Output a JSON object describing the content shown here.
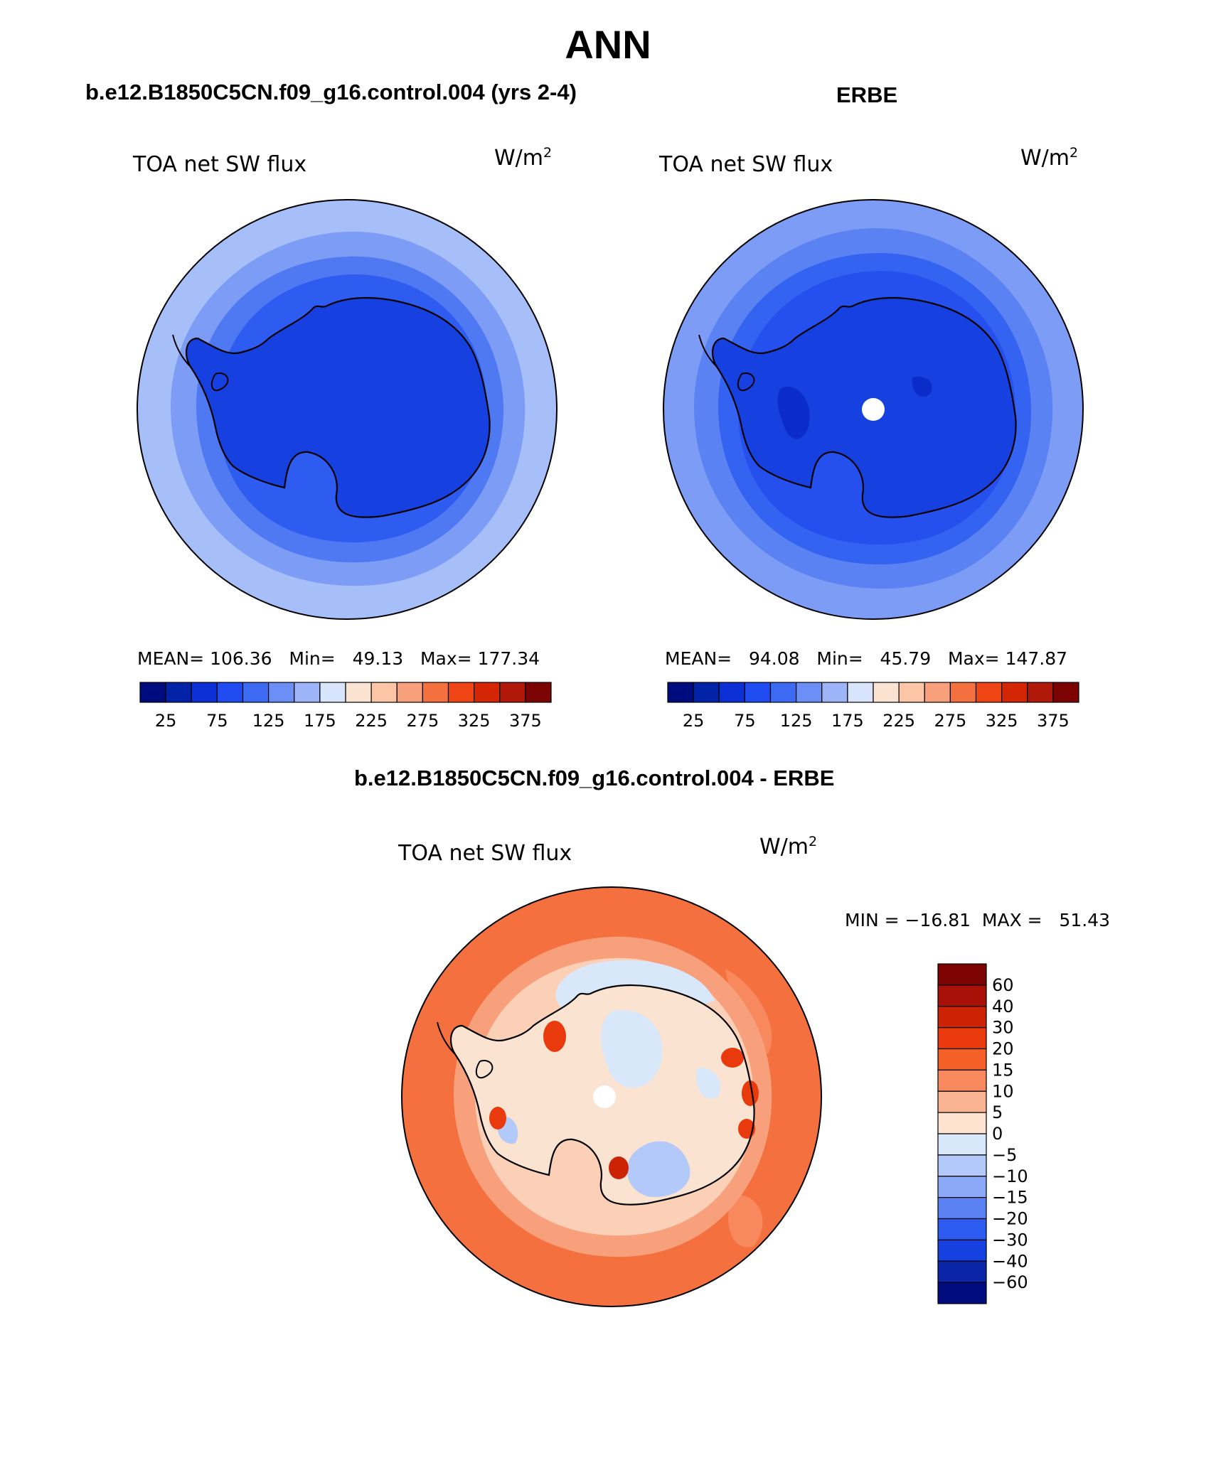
{
  "figure": {
    "season": "ANN"
  },
  "panels": [
    {
      "id": "model",
      "header": "b.e12.B1850C5CN.f09_g16.control.004 (yrs 2-4)",
      "variable": "TOA net SW flux",
      "units": "W/m",
      "units_exp": "2",
      "stats": {
        "mean_label": "MEAN=",
        "mean": "106.36",
        "min_label": "Min=",
        "min": "49.13",
        "max_label": "Max=",
        "max": "177.34"
      }
    },
    {
      "id": "obs",
      "header": "ERBE",
      "variable": "TOA net SW flux",
      "units": "W/m",
      "units_exp": "2",
      "stats": {
        "mean_label": "MEAN=",
        "mean": "94.08",
        "min_label": "Min=",
        "min": "45.79",
        "max_label": "Max=",
        "max": "147.87"
      }
    },
    {
      "id": "diff",
      "header": "b.e12.B1850C5CN.f09_g16.control.004 - ERBE",
      "variable": "TOA net SW flux",
      "units": "W/m",
      "units_exp": "2",
      "minmax_text": "MIN = −16.81  MAX =   51.43"
    }
  ],
  "chart_data": [
    {
      "type": "heatmap",
      "projection": "south-polar-stereographic",
      "title": "TOA net SW flux",
      "units": "W/m^2",
      "mean": 106.36,
      "min": 49.13,
      "max": 177.34,
      "colorbar": {
        "orientation": "horizontal",
        "tick_labels": [
          "25",
          "75",
          "125",
          "175",
          "225",
          "275",
          "325",
          "375"
        ],
        "colors": [
          "#000c7d",
          "#0222a8",
          "#0c2fd6",
          "#1f4bf0",
          "#3d6af3",
          "#6c8ff5",
          "#9db5f8",
          "#d7e4fb",
          "#fbe3d2",
          "#fbc5a6",
          "#f8a07c",
          "#f5703f",
          "#ef4414",
          "#d42605",
          "#b0180a",
          "#7d0303"
        ]
      },
      "shading": {
        "outer_ring": "#a6bff8",
        "ring_2": "#7d9cf5",
        "ring_3": "#4f79f2",
        "ring_4": "#2e5cf0",
        "continent": "#1640e0"
      }
    },
    {
      "type": "heatmap",
      "projection": "south-polar-stereographic",
      "title": "TOA net SW flux",
      "units": "W/m^2",
      "mean": 94.08,
      "min": 45.79,
      "max": 147.87,
      "colorbar": {
        "orientation": "horizontal",
        "tick_labels": [
          "25",
          "75",
          "125",
          "175",
          "225",
          "275",
          "325",
          "375"
        ],
        "colors": [
          "#000c7d",
          "#0222a8",
          "#0c2fd6",
          "#1f4bf0",
          "#3d6af3",
          "#6c8ff5",
          "#9db5f8",
          "#d7e4fb",
          "#fbe3d2",
          "#fbc5a6",
          "#f8a07c",
          "#f5703f",
          "#ef4414",
          "#d42605",
          "#b0180a",
          "#7d0303"
        ]
      },
      "shading": {
        "outer_ring": "#7d9cf5",
        "ring_2": "#5a82f3",
        "ring_3": "#3563f1",
        "ring_4": "#2550ee",
        "continent": "#1640e0",
        "missing_pole": "#ffffff"
      }
    },
    {
      "type": "heatmap",
      "projection": "south-polar-stereographic",
      "title": "TOA net SW flux",
      "units": "W/m^2",
      "min": -16.81,
      "max": 51.43,
      "colorbar": {
        "orientation": "vertical",
        "tick_labels": [
          "60",
          "40",
          "30",
          "20",
          "15",
          "10",
          "5",
          "0",
          "−5",
          "−10",
          "−15",
          "−20",
          "−30",
          "−40",
          "−60"
        ],
        "colors": [
          "#7d0303",
          "#a81008",
          "#cd2305",
          "#e83a0c",
          "#f55f28",
          "#f8885d",
          "#fab494",
          "#fde3d0",
          "#d9e7fb",
          "#b2c9f9",
          "#8ba9f6",
          "#5a82f3",
          "#2e5cf0",
          "#1640e0",
          "#0a25a8",
          "#000c7d"
        ]
      },
      "shading": {
        "outer_ring": "#f5703f",
        "ring_2": "#f8a07c",
        "ring_3": "#fbd0b6",
        "ring_4": "#d9e7fb",
        "continent": "#fbe3d2",
        "missing_pole": "#ffffff"
      }
    }
  ]
}
